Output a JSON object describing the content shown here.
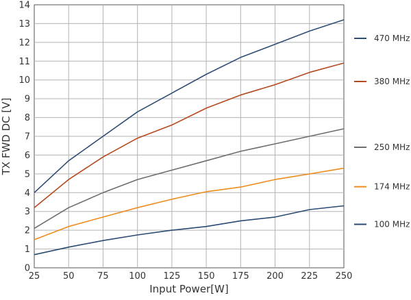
{
  "chart_data": {
    "type": "line",
    "title": "",
    "xlabel": "Input Power[W]",
    "ylabel": "TX FWD DC [V]",
    "xlim": [
      25,
      250
    ],
    "ylim": [
      0,
      14
    ],
    "x_ticks": [
      25,
      50,
      75,
      100,
      125,
      150,
      175,
      200,
      225,
      250
    ],
    "y_ticks": [
      0,
      1,
      2,
      3,
      4,
      5,
      6,
      7,
      8,
      9,
      10,
      11,
      12,
      13,
      14
    ],
    "grid": true,
    "legend_placement": "right",
    "x": [
      25,
      50,
      75,
      100,
      125,
      150,
      175,
      200,
      225,
      250
    ],
    "series": [
      {
        "name": "470 MHz",
        "color": "#2e4d73",
        "values": [
          4.0,
          5.7,
          7.0,
          8.3,
          9.3,
          10.3,
          11.2,
          11.9,
          12.6,
          13.2
        ]
      },
      {
        "name": "380 MHz",
        "color": "#b5491c",
        "values": [
          3.2,
          4.7,
          5.9,
          6.9,
          7.6,
          8.5,
          9.2,
          9.75,
          10.4,
          10.9
        ]
      },
      {
        "name": "250 MHz",
        "color": "#6d6d6d",
        "values": [
          2.1,
          3.2,
          4.0,
          4.7,
          5.2,
          5.7,
          6.2,
          6.6,
          7.0,
          7.4
        ]
      },
      {
        "name": "174 MHz",
        "color": "#f08c1e",
        "values": [
          1.5,
          2.2,
          2.7,
          3.2,
          3.65,
          4.05,
          4.3,
          4.7,
          5.0,
          5.3
        ]
      },
      {
        "name": "100 MHz",
        "color": "#2a4a72",
        "values": [
          0.7,
          1.1,
          1.45,
          1.75,
          2.0,
          2.2,
          2.5,
          2.7,
          3.1,
          3.3
        ]
      }
    ]
  }
}
